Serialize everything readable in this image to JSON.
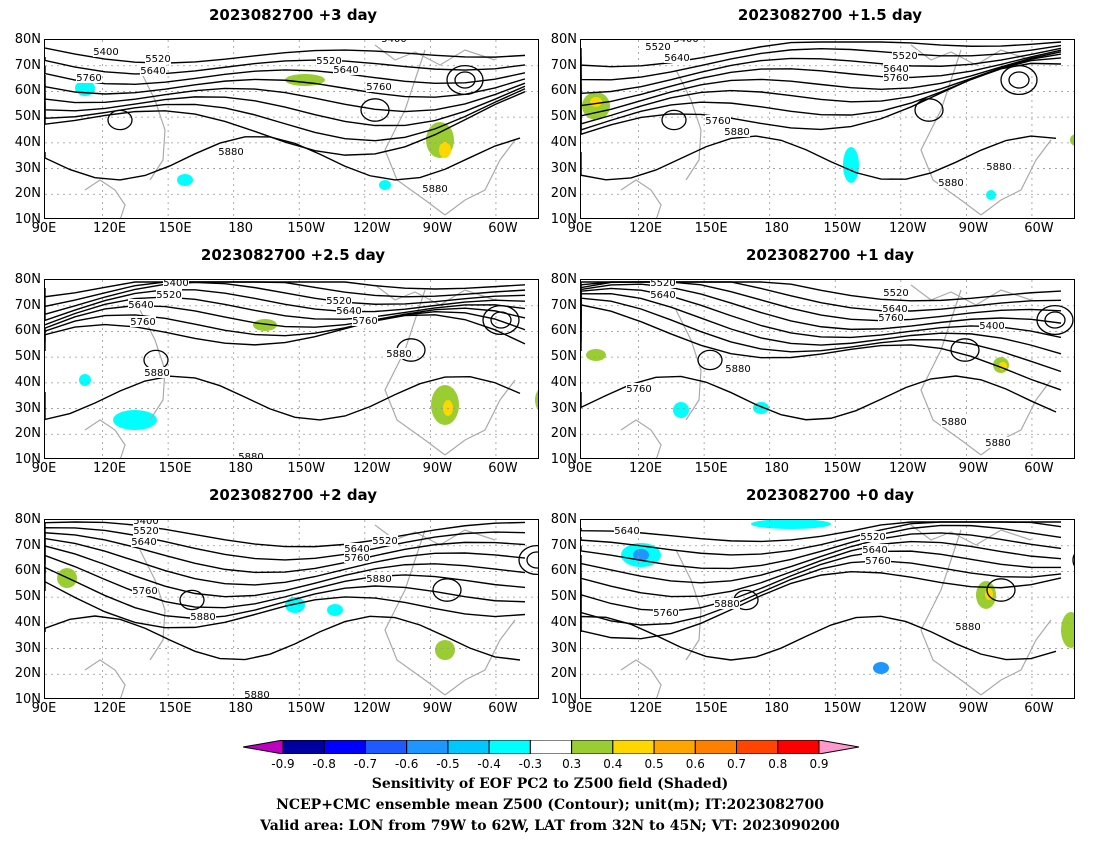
{
  "panels": [
    {
      "title": "2023082700 +3 day"
    },
    {
      "title": "2023082700 +1.5 day"
    },
    {
      "title": "2023082700 +2.5 day"
    },
    {
      "title": "2023082700 +1 day"
    },
    {
      "title": "2023082700 +2 day"
    },
    {
      "title": "2023082700 +0 day"
    }
  ],
  "axes": {
    "lat_labels": [
      "80N",
      "70N",
      "60N",
      "50N",
      "40N",
      "30N",
      "20N",
      "10N"
    ],
    "lon_labels": [
      "90E",
      "120E",
      "150E",
      "180",
      "150W",
      "120W",
      "90W",
      "60W"
    ]
  },
  "contour_labels": {
    "p0": [
      "5400",
      "5520",
      "5640",
      "5760",
      "5400",
      "5520",
      "5640",
      "5760",
      "5880",
      "5880"
    ],
    "p1": [
      "5400",
      "5520",
      "5640",
      "5520",
      "5640",
      "5760",
      "5760",
      "5880",
      "5880",
      "5880"
    ],
    "p2": [
      "5400",
      "5520",
      "5640",
      "5760",
      "5520",
      "5640",
      "5760",
      "5880",
      "5880",
      "5880"
    ],
    "p3": [
      "5520",
      "5640",
      "5520",
      "5640",
      "5760",
      "5400",
      "5760",
      "5880",
      "5880",
      "5880"
    ],
    "p4": [
      "5400",
      "5520",
      "5640",
      "5640",
      "5520",
      "5760",
      "5880",
      "5760",
      "5880",
      "5880"
    ],
    "p5": [
      "5640",
      "5520",
      "5640",
      "5760",
      "5760",
      "5880",
      "5880"
    ]
  },
  "colorbar": {
    "ticks": [
      "-0.9",
      "-0.8",
      "-0.7",
      "-0.6",
      "-0.5",
      "-0.4",
      "-0.3",
      "0.3",
      "0.4",
      "0.5",
      "0.6",
      "0.7",
      "0.8",
      "0.9"
    ],
    "colors": [
      "#0000a0",
      "#0000ff",
      "#1e5aff",
      "#1e96ff",
      "#00c8ff",
      "#00ffff",
      "#ffffff",
      "#9acd32",
      "#ffd700",
      "#ffa500",
      "#ff7f00",
      "#ff4500",
      "#ff0000"
    ],
    "low_end_color": "#c000c0",
    "high_end_color": "#ff99cc"
  },
  "caption": {
    "line1": "Sensitivity of EOF PC2 to Z500 field (Shaded)",
    "line2": "NCEP+CMC ensemble mean Z500 (Contour); unit(m); IT:2023082700",
    "line3": "Valid area: LON from 79W to 62W, LAT from 32N to 45N; VT: 2023090200"
  }
}
